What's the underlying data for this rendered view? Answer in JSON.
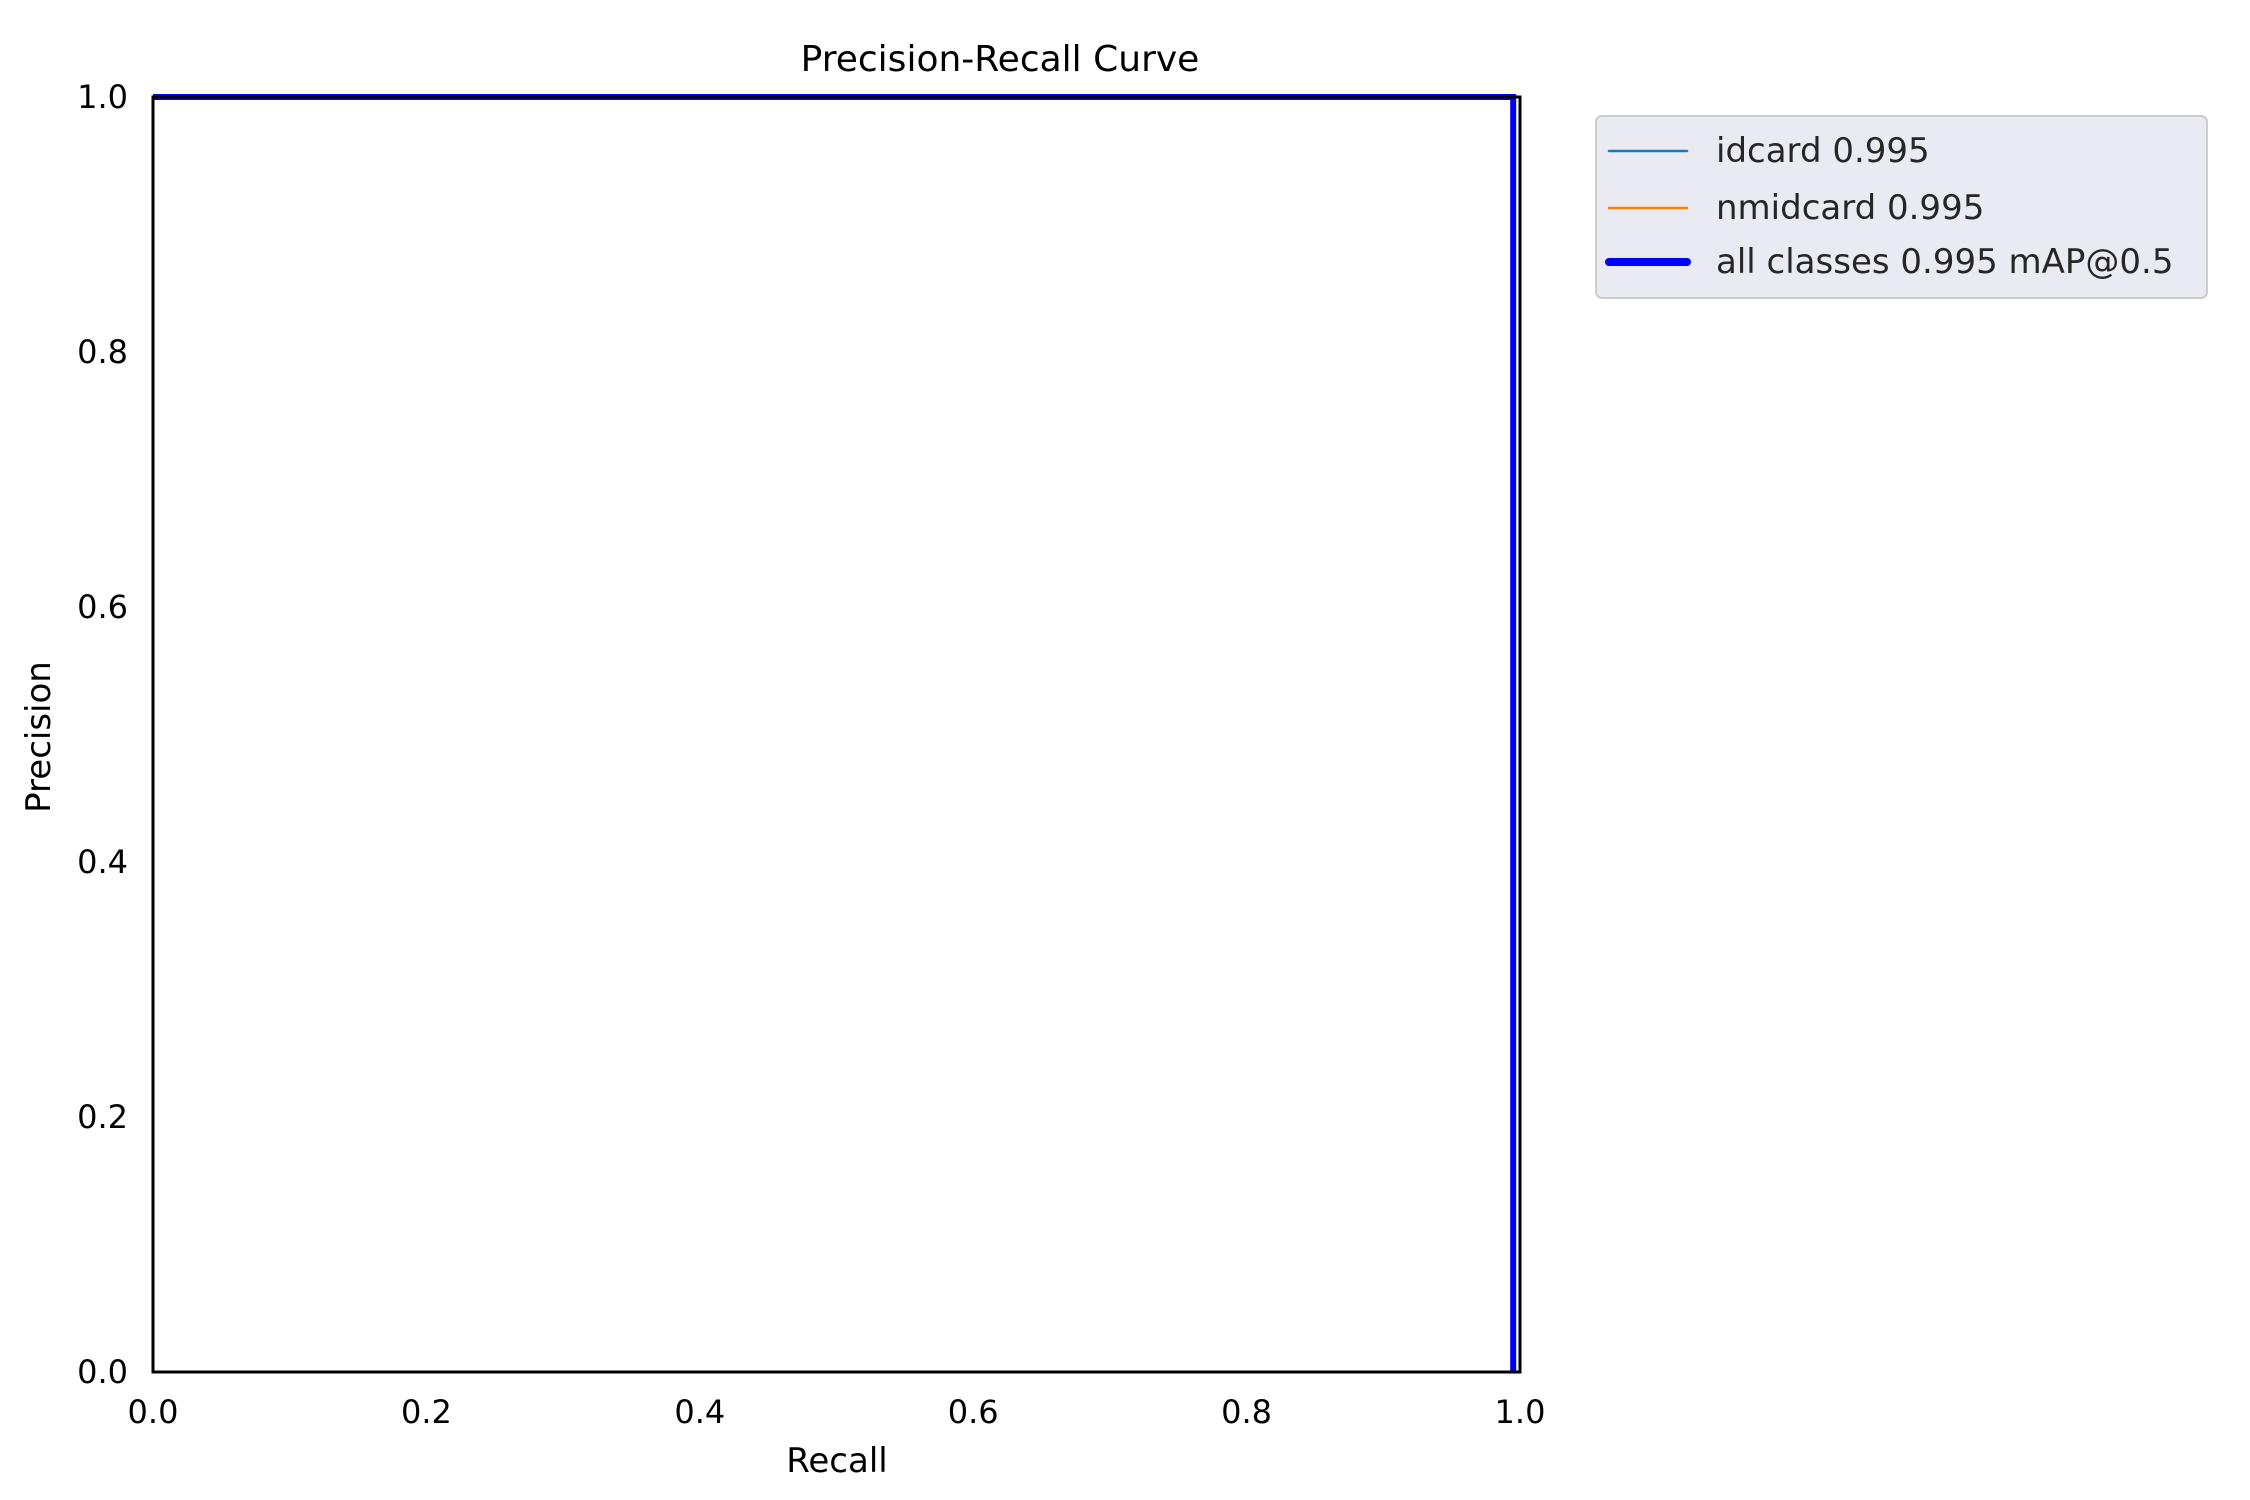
{
  "chart_data": {
    "type": "line",
    "title": "Precision-Recall Curve",
    "xlabel": "Recall",
    "ylabel": "Precision",
    "xlim": [
      0,
      1
    ],
    "ylim": [
      0,
      1
    ],
    "x_ticks": [
      0,
      0.2,
      0.4,
      0.6,
      0.8,
      1
    ],
    "y_ticks": [
      0,
      0.2,
      0.4,
      0.6,
      0.8,
      1
    ],
    "x_tick_labels": [
      "0.0",
      "0.2",
      "0.4",
      "0.6",
      "0.8",
      "1.0"
    ],
    "y_tick_labels": [
      "0.0",
      "0.2",
      "0.4",
      "0.6",
      "0.8",
      "1.0"
    ],
    "grid": false,
    "legend_placement": "outside-upper-right",
    "series": [
      {
        "name": "idcard 0.995",
        "color": "#1f77b4",
        "width": "thin",
        "x": [
          0,
          1,
          1
        ],
        "y": [
          1,
          1,
          0
        ]
      },
      {
        "name": "nmidcard 0.995",
        "color": "#ff7f0e",
        "width": "thin",
        "x": [
          0,
          1,
          1
        ],
        "y": [
          1,
          1,
          0
        ]
      },
      {
        "name": "all classes 0.995 mAP@0.5",
        "color": "#0000ff",
        "width": "thick",
        "x": [
          0,
          0.995,
          0.995
        ],
        "y": [
          1,
          1,
          0
        ]
      }
    ]
  }
}
